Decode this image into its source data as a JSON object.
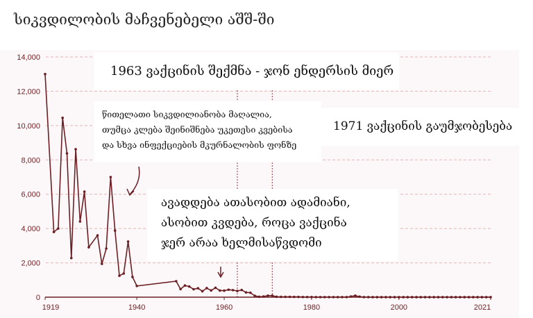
{
  "title": "სიკვდილობის მაჩვენებელი აშშ-ში",
  "annotations": {
    "vaccine_1963": "1963 ვაქცინის შექმნა - ჯონ ენდერსის მიერ",
    "high_mortality": [
      "წითელათი სიკვდილიანობა მაღალია,",
      "თუმცა კლება შეინიშნება უკეთესი კვებისა",
      "და სხვა ინფექციების მკურნალობის ფონზე"
    ],
    "vaccine_1971": "1971 ვაქცინის გაუმჯობესება",
    "pre_vaccine": [
      "ავადდება ათასობით ადამიანი,",
      "ასობით კვდება, როცა ვაქცინა",
      "ჯერ არაა ხელმისაწვდომი"
    ]
  },
  "colors": {
    "line": "#6b1f24",
    "grid": "#e3b4b4",
    "background": "#fcf8f9"
  },
  "chart_data": {
    "type": "line",
    "title": "სიკვდილობის მაჩვენებელი აშშ-ში",
    "xlabel": "",
    "ylabel": "",
    "xlim": [
      1919,
      2021
    ],
    "ylim": [
      0,
      14000
    ],
    "x_ticks": [
      "1919",
      "1940",
      "1960",
      "1980",
      "2000",
      "2021"
    ],
    "y_ticks": [
      "0",
      "2,000",
      "4,000",
      "6,000",
      "8,000",
      "10,000",
      "12,000",
      "14,000"
    ],
    "grid": true,
    "vlines": [
      1963,
      1971
    ],
    "x": [
      1919,
      1921,
      1922,
      1923,
      1924,
      1925,
      1926,
      1927,
      1928,
      1929,
      1931,
      1932,
      1933,
      1934,
      1935,
      1936,
      1937,
      1938,
      1939,
      1940,
      1949,
      1950,
      1951,
      1952,
      1953,
      1954,
      1955,
      1956,
      1957,
      1958,
      1959,
      1960,
      1961,
      1962,
      1963,
      1964,
      1965,
      1966,
      1967,
      1968,
      1969,
      1970,
      1971,
      1972,
      1973,
      1974,
      1975,
      1976,
      1977,
      1978,
      1979,
      1980,
      1981,
      1982,
      1983,
      1984,
      1985,
      1986,
      1987,
      1988,
      1989,
      1990,
      1991,
      1992,
      1993,
      1994,
      1995,
      1996,
      1997,
      1998,
      1999,
      2000,
      2001,
      2002,
      2003,
      2004,
      2005,
      2006,
      2007,
      2008,
      2009,
      2010,
      2011,
      2012,
      2013,
      2014,
      2015,
      2016,
      2017,
      2018,
      2019,
      2020,
      2021
    ],
    "y": [
      13000,
      3800,
      4000,
      10450,
      8380,
      2280,
      8620,
      4410,
      6150,
      2910,
      3600,
      1940,
      2830,
      7000,
      3880,
      1250,
      1380,
      3240,
      1180,
      650,
      930,
      470,
      680,
      620,
      460,
      520,
      345,
      530,
      390,
      550,
      385,
      380,
      435,
      410,
      360,
      420,
      275,
      260,
      80,
      25,
      40,
      90,
      90,
      25,
      20,
      20,
      20,
      15,
      15,
      10,
      10,
      10,
      5,
      5,
      5,
      5,
      5,
      5,
      5,
      5,
      40,
      90,
      30,
      5,
      5,
      2,
      2,
      2,
      2,
      2,
      2,
      2,
      2,
      2,
      2,
      2,
      2,
      2,
      2,
      2,
      2,
      2,
      2,
      2,
      2,
      2,
      2,
      2,
      2,
      2,
      2,
      2,
      2
    ]
  }
}
